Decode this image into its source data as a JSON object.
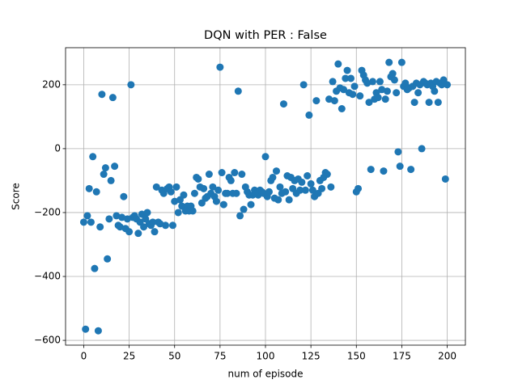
{
  "chart_data": {
    "type": "scatter",
    "title": "DQN with PER : False",
    "x_label": "num of episode",
    "y_label": "Score",
    "color": "#1f77b4",
    "grid": true,
    "xlim": [
      -10,
      210
    ],
    "ylim": [
      -615,
      316
    ],
    "xticks": [
      0,
      25,
      50,
      75,
      100,
      125,
      150,
      175,
      200
    ],
    "yticks": [
      {
        "value": -600,
        "label": "−600"
      },
      {
        "value": -400,
        "label": "−400"
      },
      {
        "value": -200,
        "label": "−200"
      },
      0,
      200
    ],
    "x": [
      0,
      1,
      2,
      3,
      4,
      5,
      6,
      7,
      8,
      9,
      10,
      11,
      12,
      13,
      14,
      15,
      16,
      17,
      18,
      19,
      20,
      21,
      22,
      23,
      24,
      25,
      26,
      27,
      28,
      29,
      30,
      31,
      32,
      33,
      34,
      35,
      36,
      37,
      38,
      39,
      40,
      41,
      42,
      43,
      44,
      45,
      46,
      47,
      48,
      49,
      50,
      51,
      52,
      53,
      54,
      55,
      56,
      57,
      58,
      59,
      60,
      61,
      62,
      63,
      64,
      65,
      66,
      67,
      68,
      69,
      70,
      71,
      72,
      73,
      74,
      75,
      76,
      77,
      78,
      79,
      80,
      81,
      82,
      83,
      84,
      85,
      86,
      87,
      88,
      89,
      90,
      91,
      92,
      93,
      94,
      95,
      96,
      97,
      98,
      99,
      100,
      101,
      102,
      103,
      104,
      105,
      106,
      107,
      108,
      109,
      110,
      111,
      112,
      113,
      114,
      115,
      116,
      117,
      118,
      119,
      120,
      121,
      122,
      123,
      124,
      125,
      126,
      127,
      128,
      129,
      130,
      131,
      132,
      133,
      134,
      135,
      136,
      137,
      138,
      139,
      140,
      141,
      142,
      143,
      144,
      145,
      146,
      147,
      148,
      149,
      150,
      151,
      152,
      153,
      154,
      155,
      156,
      157,
      158,
      159,
      160,
      161,
      162,
      163,
      164,
      165,
      166,
      167,
      168,
      169,
      170,
      171,
      172,
      173,
      174,
      175,
      176,
      177,
      178,
      179,
      180,
      181,
      182,
      183,
      184,
      185,
      186,
      187,
      188,
      189,
      190,
      191,
      192,
      193,
      194,
      195,
      196,
      197,
      198,
      199,
      200
    ],
    "values": [
      -230,
      -565,
      -210,
      -125,
      -230,
      -25,
      -375,
      -135,
      -570,
      -245,
      170,
      -80,
      -60,
      -345,
      -220,
      -100,
      160,
      -55,
      -210,
      -240,
      -245,
      -215,
      -150,
      -250,
      -220,
      -260,
      200,
      -215,
      -210,
      -220,
      -265,
      -230,
      -205,
      -245,
      -220,
      -200,
      -235,
      -240,
      -230,
      -260,
      -120,
      -230,
      -235,
      -130,
      -140,
      -240,
      -125,
      -120,
      -135,
      -240,
      -165,
      -120,
      -200,
      -160,
      -180,
      -145,
      -195,
      -180,
      -195,
      -180,
      -195,
      -140,
      -90,
      -95,
      -120,
      -170,
      -125,
      -155,
      -150,
      -80,
      -140,
      -120,
      -150,
      -165,
      -130,
      255,
      -75,
      -175,
      -140,
      -140,
      -90,
      -100,
      -140,
      -75,
      -140,
      180,
      -210,
      -80,
      -190,
      -120,
      -135,
      -145,
      -175,
      -145,
      -130,
      -140,
      -145,
      -130,
      -135,
      -140,
      -25,
      -150,
      -135,
      -100,
      -90,
      -155,
      -70,
      -160,
      -120,
      -140,
      140,
      -135,
      -85,
      -160,
      -90,
      -125,
      -100,
      -140,
      -95,
      -130,
      -105,
      200,
      -130,
      -85,
      105,
      -110,
      -130,
      -150,
      150,
      -140,
      -100,
      -125,
      -90,
      -75,
      -80,
      155,
      -120,
      210,
      150,
      180,
      265,
      190,
      125,
      185,
      220,
      245,
      175,
      220,
      170,
      195,
      -135,
      -125,
      165,
      245,
      230,
      215,
      205,
      145,
      -65,
      210,
      155,
      175,
      160,
      210,
      185,
      -70,
      155,
      180,
      270,
      225,
      235,
      215,
      175,
      -10,
      -55,
      270,
      195,
      205,
      185,
      190,
      -65,
      195,
      145,
      205,
      175,
      200,
      0,
      210,
      205,
      200,
      145,
      205,
      195,
      180,
      210,
      145,
      205,
      200,
      215,
      -95,
      200
    ]
  }
}
